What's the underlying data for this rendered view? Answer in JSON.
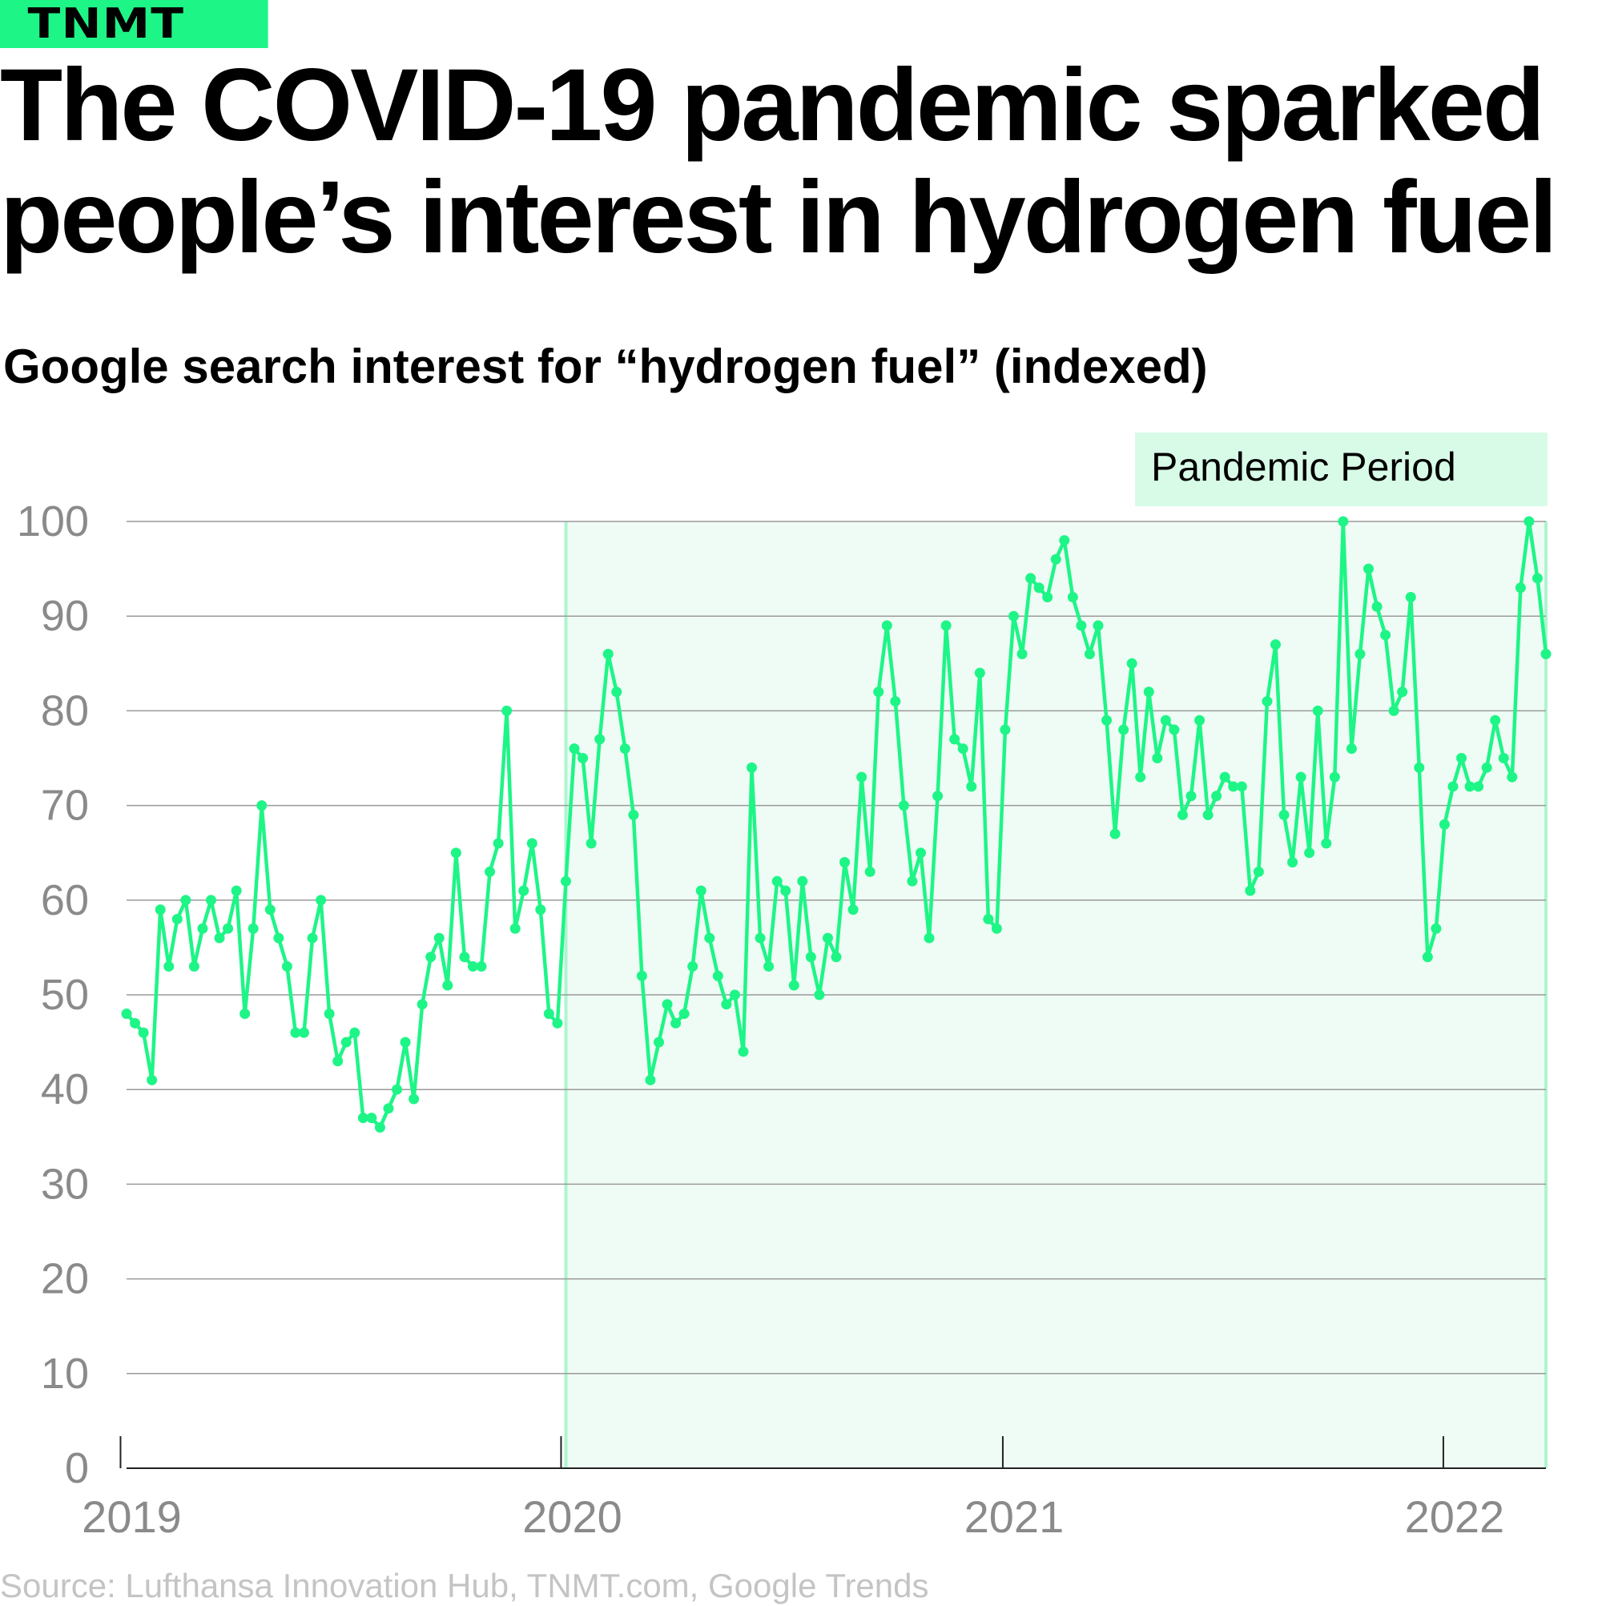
{
  "brand": {
    "logo_text": "TNMT",
    "accent_color": "#1ef587"
  },
  "title": "The COVID-19 pandemic sparked people’s interest in hydrogen fuel",
  "subtitle": "Google search interest for “hydrogen fuel” (indexed)",
  "source": "Source: Lufthansa Innovation Hub, TNMT.com, Google Trends",
  "chart_data": {
    "type": "line",
    "title": "Google search interest for “hydrogen fuel” (indexed)",
    "xlabel": "",
    "ylabel": "",
    "ylim": [
      0,
      100
    ],
    "y_ticks": [
      0,
      10,
      20,
      30,
      40,
      50,
      60,
      70,
      80,
      90,
      100
    ],
    "x_tick_labels": [
      "2019",
      "2020",
      "2021",
      "2022"
    ],
    "x_range": [
      "2019-01-06",
      "2022-03-27"
    ],
    "grid": true,
    "line_color": "#1ef587",
    "shaded_region": {
      "label": "Pandemic Period",
      "start": "2020-01-05",
      "end": "2022-03-27",
      "color": "#effcf5",
      "border_color": "#aef5cf",
      "label_color": "#d8fbe8"
    },
    "series": [
      {
        "name": "",
        "frequency": "weekly",
        "start": "2019-01-06",
        "values": [
          48,
          47,
          46,
          41,
          59,
          53,
          58,
          60,
          53,
          57,
          60,
          56,
          57,
          61,
          48,
          57,
          70,
          59,
          56,
          53,
          46,
          46,
          56,
          60,
          48,
          43,
          45,
          46,
          37,
          37,
          36,
          38,
          40,
          45,
          39,
          49,
          54,
          56,
          51,
          65,
          54,
          53,
          53,
          63,
          66,
          80,
          57,
          61,
          66,
          59,
          48,
          47,
          62,
          76,
          75,
          66,
          77,
          86,
          82,
          76,
          69,
          52,
          41,
          45,
          49,
          47,
          48,
          53,
          61,
          56,
          52,
          49,
          50,
          44,
          74,
          56,
          53,
          62,
          61,
          51,
          62,
          54,
          50,
          56,
          54,
          64,
          59,
          73,
          63,
          82,
          89,
          81,
          70,
          62,
          65,
          56,
          71,
          89,
          77,
          76,
          72,
          84,
          58,
          57,
          78,
          90,
          86,
          94,
          93,
          92,
          96,
          98,
          92,
          89,
          86,
          89,
          79,
          67,
          78,
          85,
          73,
          82,
          75,
          79,
          78,
          69,
          71,
          79,
          69,
          71,
          73,
          72,
          72,
          61,
          63,
          81,
          87,
          69,
          64,
          73,
          65,
          80,
          66,
          73,
          100,
          76,
          86,
          95,
          91,
          88,
          80,
          82,
          92,
          74,
          54,
          57,
          68,
          72,
          75,
          72,
          72,
          74,
          79,
          75,
          73,
          93,
          100,
          94,
          86
        ]
      }
    ]
  }
}
